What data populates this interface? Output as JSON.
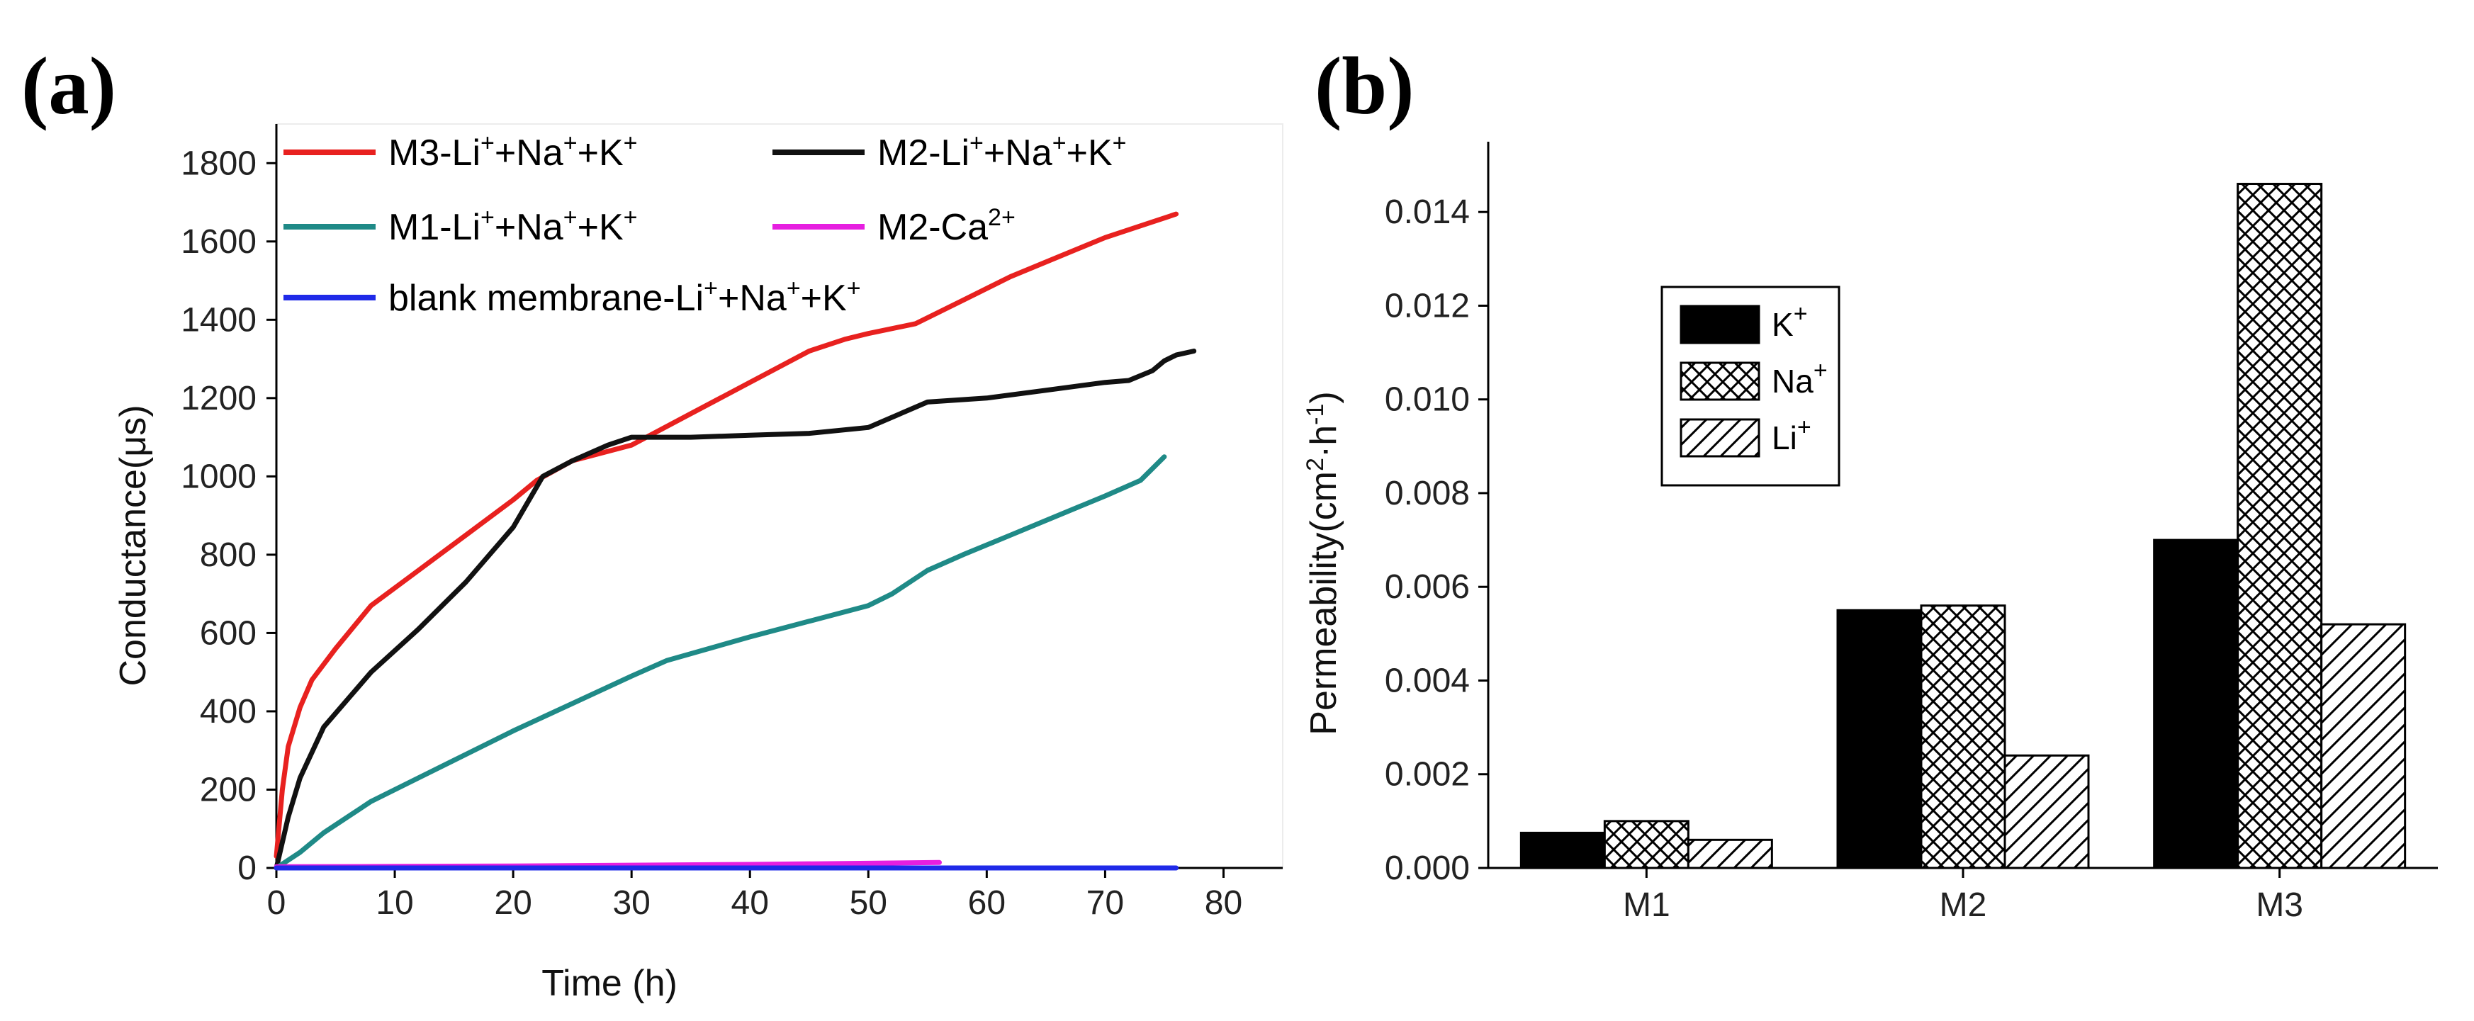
{
  "panel_labels": {
    "a": "(a)",
    "b": "(b)"
  },
  "chart_data": [
    {
      "type": "line",
      "panel": "(a)",
      "xlabel": "Time (h)",
      "ylabel": "Conductance(μs)",
      "xlim": [
        0,
        85
      ],
      "ylim": [
        0,
        1900
      ],
      "xticks": [
        0,
        10,
        20,
        30,
        40,
        50,
        60,
        70,
        80
      ],
      "yticks": [
        0,
        200,
        400,
        600,
        800,
        1000,
        1200,
        1400,
        1600,
        1800
      ],
      "grid": false,
      "legend_position": "top-left",
      "series": [
        {
          "name_parts": [
            "M3-Li",
            "+",
            "+Na",
            "+",
            "+K",
            "+"
          ],
          "color": "#e8211f",
          "x": [
            0,
            0.5,
            1,
            2,
            3,
            5,
            8,
            12,
            16,
            20,
            22,
            25,
            30,
            35,
            40,
            45,
            48,
            50,
            54,
            58,
            62,
            66,
            70,
            74,
            76
          ],
          "y": [
            30,
            200,
            310,
            410,
            480,
            560,
            670,
            760,
            850,
            940,
            990,
            1040,
            1080,
            1160,
            1240,
            1320,
            1350,
            1365,
            1390,
            1450,
            1510,
            1560,
            1610,
            1650,
            1670
          ]
        },
        {
          "name_parts": [
            "M2-Li",
            "+",
            "+Na",
            "+",
            "+K",
            "+"
          ],
          "color": "#111111",
          "x": [
            0,
            1,
            2,
            4,
            6,
            8,
            12,
            16,
            20,
            22.5,
            25,
            28,
            30,
            35,
            40,
            45,
            50,
            55,
            60,
            65,
            70,
            72,
            74,
            75,
            76,
            77.5
          ],
          "y": [
            0,
            130,
            230,
            360,
            430,
            500,
            610,
            730,
            870,
            1000,
            1040,
            1080,
            1100,
            1100,
            1105,
            1110,
            1125,
            1190,
            1200,
            1220,
            1240,
            1245,
            1270,
            1295,
            1310,
            1320
          ]
        },
        {
          "name_parts": [
            "M1-Li",
            "+",
            "+Na",
            "+",
            "+K",
            "+"
          ],
          "color": "#1f8a87",
          "x": [
            0,
            2,
            4,
            6,
            8,
            12,
            16,
            20,
            25,
            30,
            33,
            40,
            45,
            50,
            52,
            55,
            58,
            62,
            66,
            70,
            73,
            75
          ],
          "y": [
            0,
            40,
            90,
            130,
            170,
            230,
            290,
            350,
            420,
            490,
            530,
            590,
            630,
            670,
            700,
            760,
            800,
            850,
            900,
            950,
            990,
            1050
          ]
        },
        {
          "name_parts": [
            "M2-Ca",
            "2+",
            ""
          ],
          "color": "#e61fe0",
          "x": [
            0,
            10,
            20,
            30,
            40,
            50,
            56
          ],
          "y": [
            3,
            4,
            5,
            7,
            9,
            12,
            14
          ]
        },
        {
          "name_parts": [
            "blank membrane-Li",
            "+",
            "+Na",
            "+",
            "+K",
            "+"
          ],
          "color": "#1f2ae8",
          "x": [
            0,
            10,
            20,
            30,
            40,
            50,
            60,
            70,
            76
          ],
          "y": [
            0,
            0,
            0,
            0,
            0,
            0,
            0,
            0,
            0
          ]
        }
      ]
    },
    {
      "type": "bar",
      "panel": "(b)",
      "categories": [
        "M1",
        "M2",
        "M3"
      ],
      "ylabel_parts": [
        "Permeability(cm",
        "2",
        "·h",
        "-1",
        ")"
      ],
      "ylim": [
        0,
        0.0155
      ],
      "yticks": [
        "0.000",
        "0.002",
        "0.004",
        "0.006",
        "0.008",
        "0.010",
        "0.012",
        "0.014"
      ],
      "ytick_values": [
        0,
        0.002,
        0.004,
        0.006,
        0.008,
        0.01,
        0.012,
        0.014
      ],
      "grid": false,
      "legend_position": "upper-left",
      "series": [
        {
          "label": "K",
          "sup": "+",
          "pattern": "solid",
          "values": [
            0.00075,
            0.0055,
            0.007
          ]
        },
        {
          "label": "Na",
          "sup": "+",
          "pattern": "crosshatch",
          "values": [
            0.001,
            0.0056,
            0.0146
          ]
        },
        {
          "label": "Li",
          "sup": "+",
          "pattern": "diagonal",
          "values": [
            0.0006,
            0.0024,
            0.0052
          ]
        }
      ]
    }
  ]
}
